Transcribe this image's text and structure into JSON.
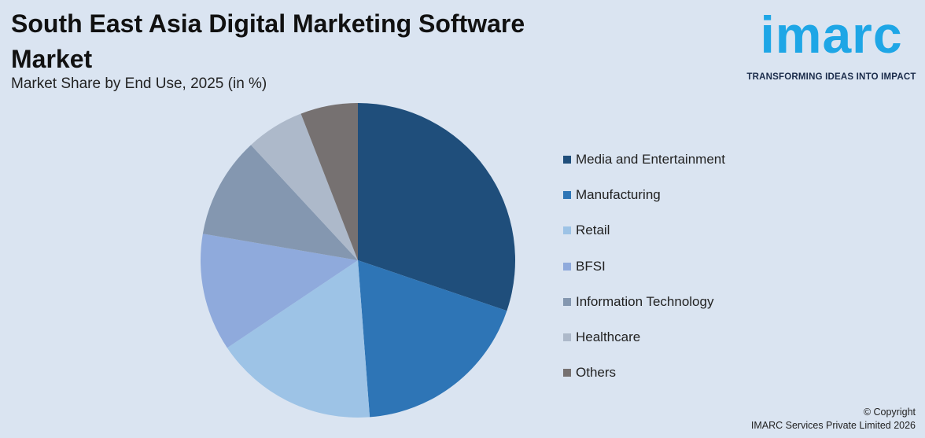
{
  "header": {
    "title": "South East Asia Digital Marketing Software Market",
    "subtitle": "Market Share by End Use, 2025 (in %)"
  },
  "brand": {
    "logo_text": "imarc",
    "tagline": "TRANSFORMING IDEAS INTO IMPACT",
    "color": "#1ea6e6"
  },
  "chart_data": {
    "type": "pie",
    "title": "South East Asia Digital Marketing Software Market",
    "subtitle": "Market Share by End Use, 2025 (in %)",
    "legend_position": "right",
    "start_angle": "12 o'clock",
    "direction": "clockwise",
    "categories": [
      "Media and Entertainment",
      "Manufacturing",
      "Retail",
      "BFSI",
      "Information Technology",
      "Healthcare",
      "Others"
    ],
    "values": [
      30.2,
      18.6,
      16.8,
      12.1,
      10.4,
      6.0,
      5.9
    ],
    "colors": [
      "#1f4e7b",
      "#2e75b6",
      "#9dc3e6",
      "#8faadc",
      "#8497b0",
      "#adb9ca",
      "#767171"
    ]
  },
  "footer": {
    "copyright_line1": "© Copyright",
    "copyright_line2": "IMARC Services Private Limited 2026"
  }
}
